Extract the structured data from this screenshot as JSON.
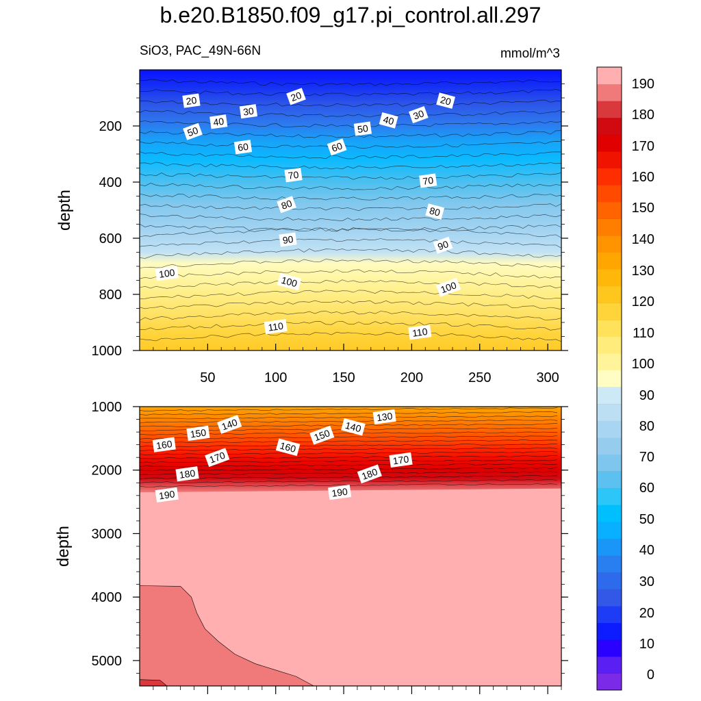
{
  "header": {
    "title": "b.e20.B1850.f09_g17.pi_control.all.297",
    "left_label": "SiO3, PAC_49N-66N",
    "right_label": "mmol/m^3"
  },
  "chart_data": [
    {
      "type": "heatmap",
      "panel": "upper",
      "ylabel": "depth",
      "ylim": [
        0,
        1000
      ],
      "xlim": [
        0,
        310
      ],
      "y_reversed": true,
      "x_ticks": [
        "50",
        "100",
        "150",
        "200",
        "250",
        "300"
      ],
      "y_ticks": [
        "200",
        "400",
        "600",
        "800",
        "1000"
      ],
      "contour_labels": [
        {
          "text": "20",
          "x": 38,
          "y": 110
        },
        {
          "text": "20",
          "x": 115,
          "y": 95
        },
        {
          "text": "20",
          "x": 225,
          "y": 110
        },
        {
          "text": "30",
          "x": 80,
          "y": 148
        },
        {
          "text": "30",
          "x": 205,
          "y": 160
        },
        {
          "text": "40",
          "x": 58,
          "y": 185
        },
        {
          "text": "40",
          "x": 183,
          "y": 180
        },
        {
          "text": "50",
          "x": 39,
          "y": 220
        },
        {
          "text": "50",
          "x": 164,
          "y": 210
        },
        {
          "text": "60",
          "x": 76,
          "y": 275
        },
        {
          "text": "60",
          "x": 145,
          "y": 275
        },
        {
          "text": "70",
          "x": 113,
          "y": 375
        },
        {
          "text": "70",
          "x": 212,
          "y": 395
        },
        {
          "text": "80",
          "x": 108,
          "y": 480
        },
        {
          "text": "80",
          "x": 217,
          "y": 505
        },
        {
          "text": "90",
          "x": 109,
          "y": 605
        },
        {
          "text": "90",
          "x": 223,
          "y": 625
        },
        {
          "text": "100",
          "x": 20,
          "y": 725
        },
        {
          "text": "100",
          "x": 110,
          "y": 755
        },
        {
          "text": "100",
          "x": 227,
          "y": 775
        },
        {
          "text": "110",
          "x": 100,
          "y": 915
        },
        {
          "text": "110",
          "x": 206,
          "y": 935
        }
      ]
    },
    {
      "type": "heatmap",
      "panel": "lower",
      "ylabel": "depth",
      "ylim": [
        1000,
        5400
      ],
      "xlim": [
        0,
        310
      ],
      "y_reversed": true,
      "y_ticks": [
        "1000",
        "2000",
        "3000",
        "4000",
        "5000"
      ],
      "contour_labels": [
        {
          "text": "130",
          "x": 180,
          "y": 1160
        },
        {
          "text": "140",
          "x": 66,
          "y": 1280
        },
        {
          "text": "140",
          "x": 157,
          "y": 1320
        },
        {
          "text": "150",
          "x": 43,
          "y": 1420
        },
        {
          "text": "150",
          "x": 134,
          "y": 1450
        },
        {
          "text": "160",
          "x": 18,
          "y": 1600
        },
        {
          "text": "160",
          "x": 109,
          "y": 1640
        },
        {
          "text": "170",
          "x": 57,
          "y": 1800
        },
        {
          "text": "170",
          "x": 192,
          "y": 1840
        },
        {
          "text": "180",
          "x": 35,
          "y": 2060
        },
        {
          "text": "180",
          "x": 169,
          "y": 2060
        },
        {
          "text": "190",
          "x": 20,
          "y": 2390
        },
        {
          "text": "190",
          "x": 147,
          "y": 2350
        }
      ]
    }
  ],
  "colorbar": {
    "labels": [
      "0",
      "10",
      "20",
      "30",
      "40",
      "50",
      "60",
      "70",
      "80",
      "90",
      "100",
      "110",
      "120",
      "130",
      "140",
      "150",
      "160",
      "170",
      "180",
      "190"
    ],
    "colors": [
      "#7b2ae8",
      "#5a1ff2",
      "#2a00ff",
      "#0d1bff",
      "#1e3cf5",
      "#3358e8",
      "#2e6bec",
      "#2a7ff0",
      "#1a95f8",
      "#08b0ff",
      "#00bfff",
      "#2dc6f8",
      "#5cc0f0",
      "#7ec6ee",
      "#96cdef",
      "#a8d6f2",
      "#bcdff4",
      "#cde9f6",
      "#fffdc4",
      "#fff49a",
      "#ffec7a",
      "#ffe15a",
      "#ffd43a",
      "#ffc61e",
      "#ffb70a",
      "#ffa600",
      "#ff9300",
      "#ff7e00",
      "#ff6400",
      "#ff4a00",
      "#ff2e00",
      "#f01400",
      "#e00000",
      "#d10a12",
      "#d9383d",
      "#f07a7a",
      "#ffafaf"
    ]
  },
  "colors": {
    "upper_top": "#0a15ff",
    "lower_bottom": "#ffafaf",
    "lower_region": "#f07a7a",
    "deep_corner": "#d9383d"
  }
}
